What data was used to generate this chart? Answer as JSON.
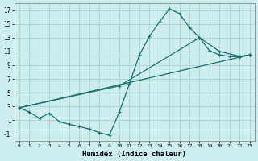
{
  "xlabel": "Humidex (Indice chaleur)",
  "xlim": [
    -0.5,
    23.5
  ],
  "ylim": [
    -2,
    18
  ],
  "xticks": [
    0,
    1,
    2,
    3,
    4,
    5,
    6,
    7,
    8,
    9,
    10,
    11,
    12,
    13,
    14,
    15,
    16,
    17,
    18,
    19,
    20,
    21,
    22,
    23
  ],
  "yticks": [
    -1,
    1,
    3,
    5,
    7,
    9,
    11,
    13,
    15,
    17
  ],
  "bg_color": "#ceeeed",
  "grid_color": "#aad4d0",
  "line_color": "#1a7070",
  "curve1_x": [
    0,
    1,
    2,
    3,
    4,
    5,
    6,
    7,
    8,
    9,
    10,
    11,
    12,
    13,
    14,
    15,
    16,
    17,
    18,
    19,
    20,
    21,
    22,
    23
  ],
  "curve1_y": [
    2.8,
    2.2,
    1.3,
    2.0,
    0.8,
    0.4,
    0.1,
    -0.3,
    -0.8,
    -1.2,
    2.2,
    6.3,
    10.5,
    13.2,
    15.3,
    17.2,
    16.5,
    14.5,
    13.0,
    11.1,
    10.5,
    10.3,
    10.2,
    10.5
  ],
  "curve2_x": [
    0,
    10,
    18,
    20,
    22,
    23
  ],
  "curve2_y": [
    2.8,
    6.0,
    13.0,
    11.0,
    10.3,
    10.5
  ],
  "curve3_x": [
    0,
    23
  ],
  "curve3_y": [
    2.8,
    10.5
  ]
}
